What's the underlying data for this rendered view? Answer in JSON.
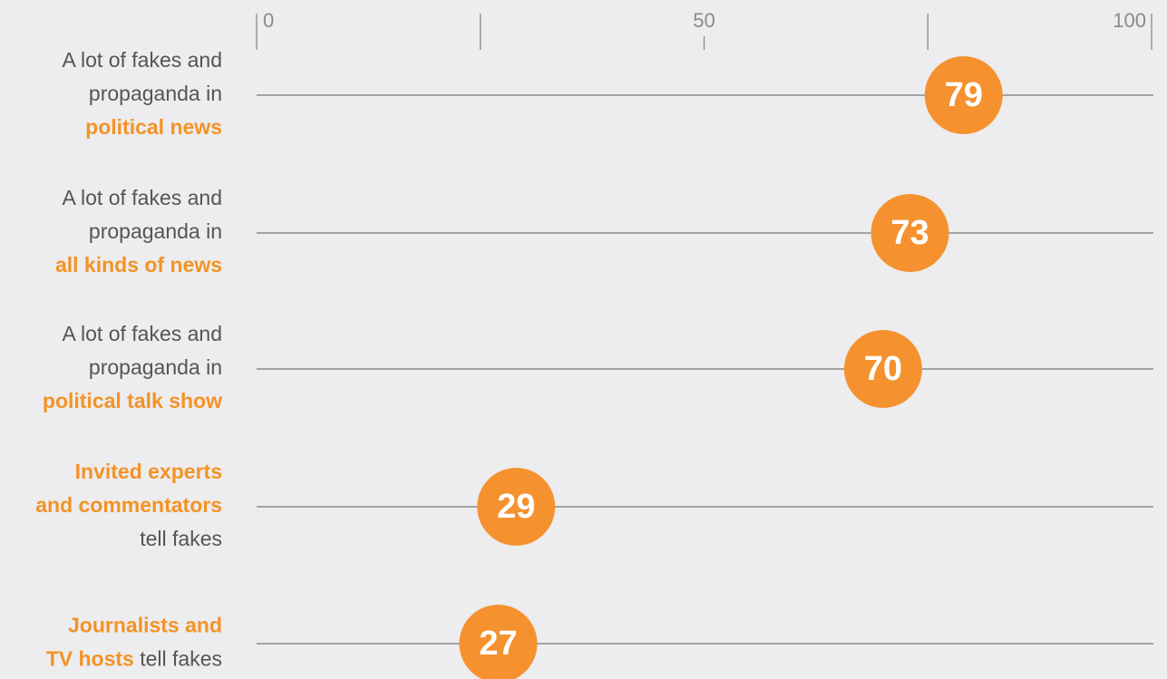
{
  "chart_data": {
    "type": "dot",
    "categories": [
      [
        [
          {
            "text": "A lot of fakes and",
            "bold": false
          }
        ],
        [
          {
            "text": "propaganda in",
            "bold": false
          }
        ],
        [
          {
            "text": "political news",
            "bold": true
          }
        ]
      ],
      [
        [
          {
            "text": "A lot of fakes and",
            "bold": false
          }
        ],
        [
          {
            "text": "propaganda in",
            "bold": false
          }
        ],
        [
          {
            "text": "all kinds of news",
            "bold": true
          }
        ]
      ],
      [
        [
          {
            "text": "A lot of fakes and",
            "bold": false
          }
        ],
        [
          {
            "text": "propaganda in",
            "bold": false
          }
        ],
        [
          {
            "text": "political talk show",
            "bold": true
          }
        ]
      ],
      [
        [
          {
            "text": "Invited experts",
            "bold": true
          }
        ],
        [
          {
            "text": "and commentators",
            "bold": true
          }
        ],
        [
          {
            "text": "tell fakes",
            "bold": false
          }
        ]
      ],
      [
        [
          {
            "text": "Journalists and",
            "bold": true
          }
        ],
        [
          {
            "text": "TV hosts",
            "bold": true
          },
          {
            "text": " tell fakes",
            "bold": false
          }
        ]
      ]
    ],
    "values": [
      79,
      73,
      70,
      29,
      27
    ],
    "color": "#f5922f",
    "xlim": [
      0,
      100
    ],
    "xticks": [
      0,
      50,
      100
    ],
    "minor_xticks": [
      25,
      75
    ]
  }
}
